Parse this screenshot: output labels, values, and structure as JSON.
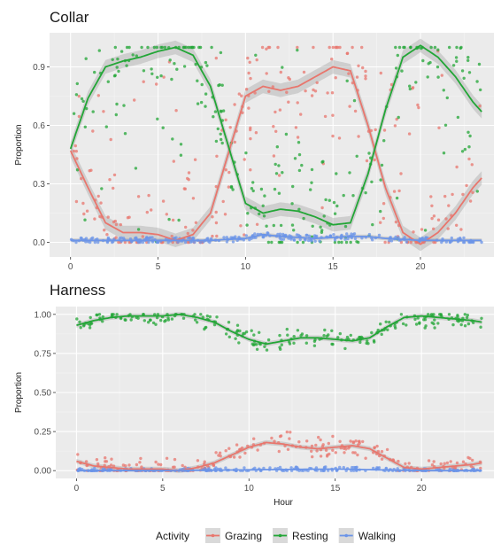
{
  "chart_data": [
    {
      "type": "scatter",
      "title": "Collar",
      "xlabel": "",
      "ylabel": "Proportion",
      "xlim": [
        -1.2,
        24.2
      ],
      "ylim": [
        -0.075,
        1.075
      ],
      "x_ticks": [
        0,
        5,
        10,
        15,
        20
      ],
      "y_ticks": [
        0.0,
        0.3,
        0.6,
        0.9
      ],
      "y_tick_labels": [
        "0.0",
        "0.3",
        "0.6",
        "0.9"
      ],
      "grid": true,
      "series": [
        {
          "name": "Grazing",
          "color": "#e8766d",
          "smooth": [
            [
              0,
              0.47
            ],
            [
              1,
              0.28
            ],
            [
              2,
              0.1
            ],
            [
              3,
              0.05
            ],
            [
              4,
              0.05
            ],
            [
              5,
              0.04
            ],
            [
              6,
              0.01
            ],
            [
              7,
              0.04
            ],
            [
              8,
              0.15
            ],
            [
              9,
              0.45
            ],
            [
              10,
              0.75
            ],
            [
              11,
              0.8
            ],
            [
              12,
              0.78
            ],
            [
              13,
              0.8
            ],
            [
              14,
              0.85
            ],
            [
              15,
              0.9
            ],
            [
              16,
              0.88
            ],
            [
              17,
              0.6
            ],
            [
              18,
              0.28
            ],
            [
              19,
              0.05
            ],
            [
              20,
              -0.01
            ],
            [
              21,
              0.05
            ],
            [
              22,
              0.15
            ],
            [
              23,
              0.28
            ],
            [
              23.5,
              0.33
            ]
          ],
          "band": 0.035,
          "scatter_top": 1.0
        },
        {
          "name": "Resting",
          "color": "#22a636",
          "smooth": [
            [
              0,
              0.48
            ],
            [
              1,
              0.74
            ],
            [
              2,
              0.9
            ],
            [
              3,
              0.93
            ],
            [
              4,
              0.95
            ],
            [
              5,
              0.98
            ],
            [
              6,
              1.0
            ],
            [
              7,
              0.96
            ],
            [
              8,
              0.8
            ],
            [
              9,
              0.5
            ],
            [
              10,
              0.2
            ],
            [
              11,
              0.15
            ],
            [
              12,
              0.17
            ],
            [
              13,
              0.16
            ],
            [
              14,
              0.13
            ],
            [
              15,
              0.09
            ],
            [
              16,
              0.1
            ],
            [
              17,
              0.35
            ],
            [
              18,
              0.68
            ],
            [
              19,
              0.95
            ],
            [
              20,
              1.01
            ],
            [
              21,
              0.95
            ],
            [
              22,
              0.85
            ],
            [
              23,
              0.72
            ],
            [
              23.5,
              0.67
            ]
          ],
          "band": 0.035,
          "scatter_top": 1.0
        },
        {
          "name": "Walking",
          "color": "#6b94e8",
          "smooth": [
            [
              0,
              0.01
            ],
            [
              2,
              0.01
            ],
            [
              4,
              0.01
            ],
            [
              6,
              0.01
            ],
            [
              8,
              0.01
            ],
            [
              10,
              0.02
            ],
            [
              11,
              0.04
            ],
            [
              12,
              0.03
            ],
            [
              14,
              0.02
            ],
            [
              16,
              0.03
            ],
            [
              17,
              0.03
            ],
            [
              18,
              0.02
            ],
            [
              20,
              0.01
            ],
            [
              22,
              0.01
            ],
            [
              23.5,
              0.01
            ]
          ],
          "band": 0.01,
          "scatter_top": 0.06
        }
      ]
    },
    {
      "type": "scatter",
      "title": "Harness",
      "xlabel": "Hour",
      "ylabel": "Proportion",
      "xlim": [
        -1.2,
        24.2
      ],
      "ylim": [
        -0.05,
        1.05
      ],
      "x_ticks": [
        0,
        5,
        10,
        15,
        20
      ],
      "y_ticks": [
        0.0,
        0.25,
        0.5,
        0.75,
        1.0
      ],
      "y_tick_labels": [
        "0.00",
        "0.25",
        "0.50",
        "0.75",
        "1.00"
      ],
      "grid": true,
      "series": [
        {
          "name": "Grazing",
          "color": "#e8766d",
          "smooth": [
            [
              0,
              0.06
            ],
            [
              1,
              0.03
            ],
            [
              2,
              0.02
            ],
            [
              3,
              0.01
            ],
            [
              4,
              0.01
            ],
            [
              5,
              0.01
            ],
            [
              6,
              0.0
            ],
            [
              7,
              0.02
            ],
            [
              8,
              0.05
            ],
            [
              9,
              0.1
            ],
            [
              10,
              0.15
            ],
            [
              11,
              0.18
            ],
            [
              12,
              0.17
            ],
            [
              13,
              0.15
            ],
            [
              14,
              0.14
            ],
            [
              15,
              0.15
            ],
            [
              16,
              0.16
            ],
            [
              17,
              0.14
            ],
            [
              18,
              0.08
            ],
            [
              19,
              0.02
            ],
            [
              20,
              0.01
            ],
            [
              21,
              0.02
            ],
            [
              22,
              0.03
            ],
            [
              23,
              0.04
            ],
            [
              23.5,
              0.05
            ]
          ],
          "band": 0.015,
          "scatter_top": 0.4
        },
        {
          "name": "Resting",
          "color": "#22a636",
          "smooth": [
            [
              0,
              0.93
            ],
            [
              1,
              0.96
            ],
            [
              2,
              0.98
            ],
            [
              3,
              0.99
            ],
            [
              4,
              0.99
            ],
            [
              5,
              0.99
            ],
            [
              6,
              1.0
            ],
            [
              7,
              0.98
            ],
            [
              8,
              0.95
            ],
            [
              9,
              0.89
            ],
            [
              10,
              0.84
            ],
            [
              11,
              0.81
            ],
            [
              12,
              0.83
            ],
            [
              13,
              0.85
            ],
            [
              14,
              0.85
            ],
            [
              15,
              0.84
            ],
            [
              16,
              0.83
            ],
            [
              17,
              0.85
            ],
            [
              18,
              0.92
            ],
            [
              19,
              0.98
            ],
            [
              20,
              0.99
            ],
            [
              21,
              0.98
            ],
            [
              22,
              0.97
            ],
            [
              23,
              0.96
            ],
            [
              23.5,
              0.95
            ]
          ],
          "band": 0.015,
          "scatter_top": 1.0
        },
        {
          "name": "Walking",
          "color": "#6b94e8",
          "smooth": [
            [
              0,
              0.0
            ],
            [
              5,
              0.0
            ],
            [
              10,
              0.005
            ],
            [
              15,
              0.01
            ],
            [
              20,
              0.0
            ],
            [
              23.5,
              0.0
            ]
          ],
          "band": 0.005,
          "scatter_top": 0.04
        }
      ]
    }
  ],
  "legend": {
    "title": "Activity",
    "position": "bottom",
    "items": [
      "Grazing",
      "Resting",
      "Walking"
    ]
  }
}
